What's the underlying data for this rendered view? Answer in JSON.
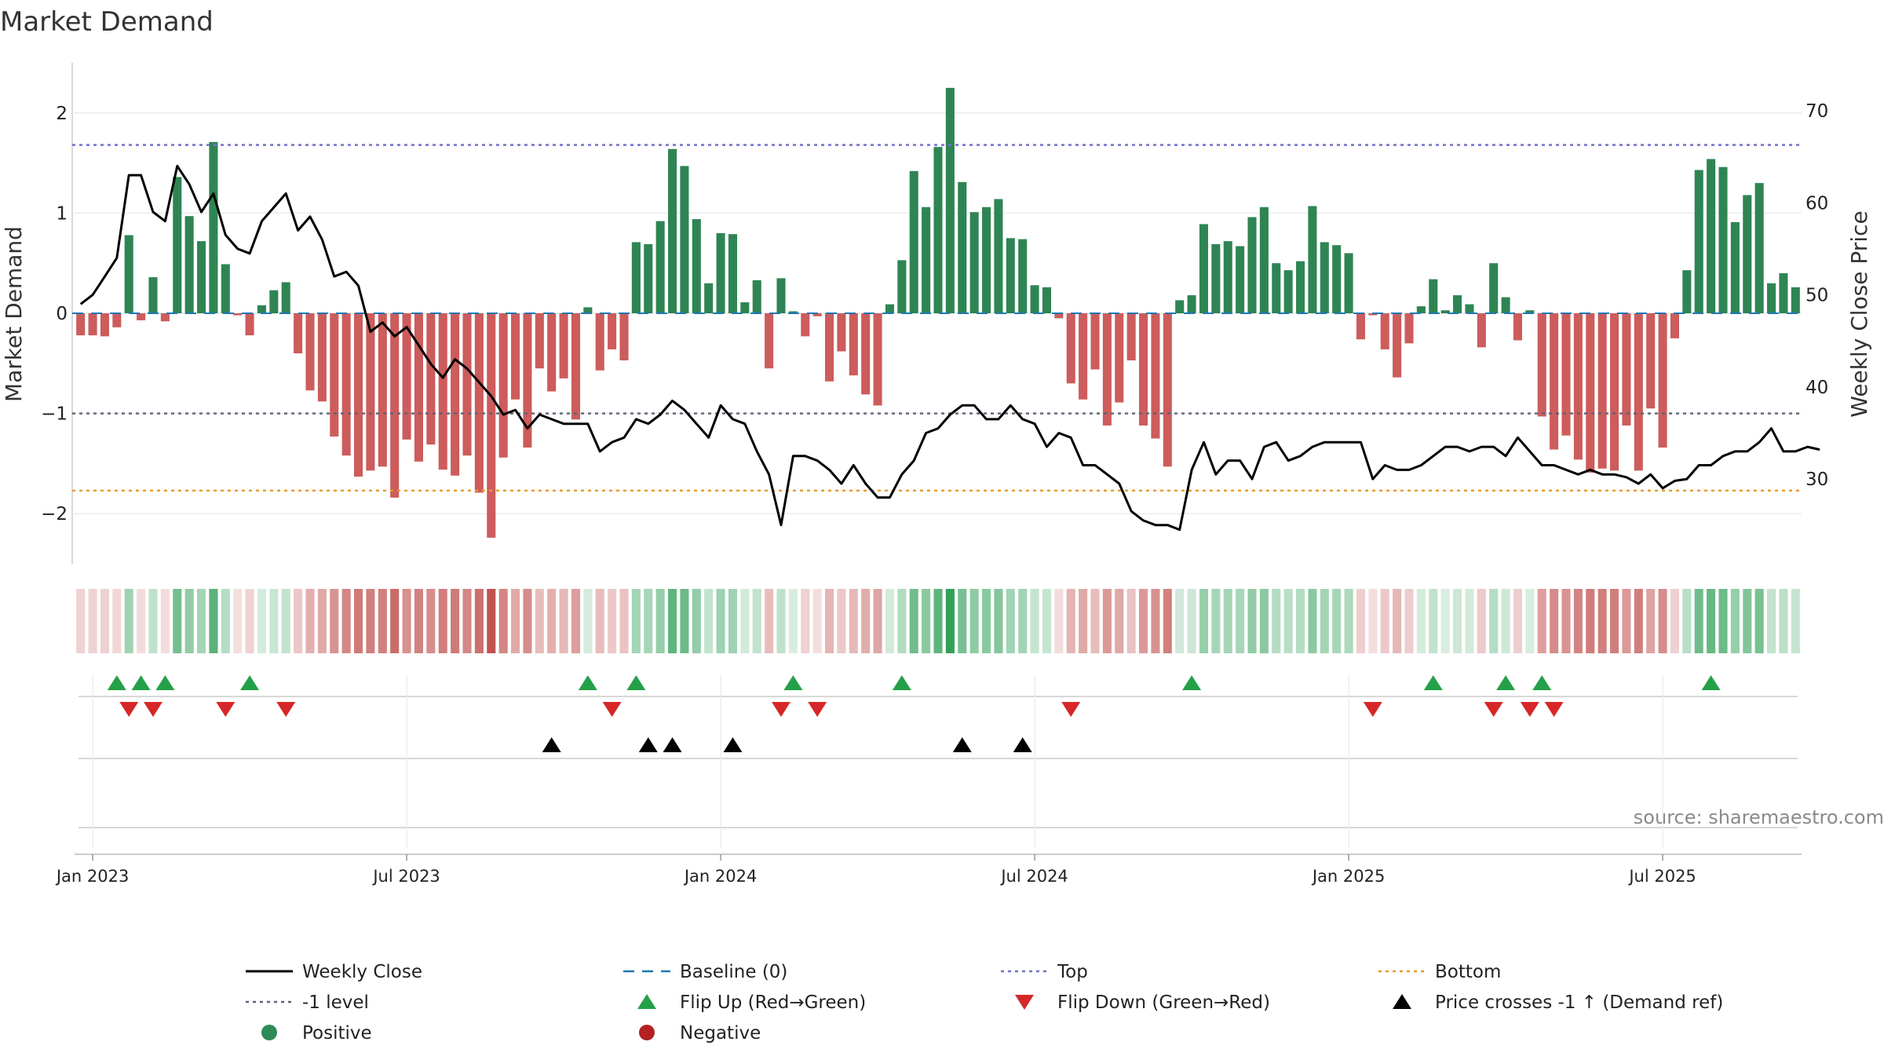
{
  "chart_data": {
    "type": "bar",
    "title": "Market Demand",
    "ylabel": "Market Demand",
    "y2label": "Weekly Close Price",
    "ylim": [
      -2.5,
      2.5
    ],
    "y2lim": [
      20.8,
      75.2
    ],
    "yticks": [
      2,
      1,
      0,
      -1,
      -2
    ],
    "ytick_labels": [
      "2",
      "1",
      "0",
      "−1",
      "−2"
    ],
    "y2ticks": [
      70,
      60,
      50,
      40,
      30
    ],
    "y2tick_labels": [
      "70",
      "60",
      "50",
      "40",
      "30"
    ],
    "top_level": 1.68,
    "minus1_level": -1.0,
    "bottom_level": -1.77,
    "x_ticks": [
      {
        "label": "Jan 2023",
        "week": 1
      },
      {
        "label": "Jul 2023",
        "week": 27
      },
      {
        "label": "Jan 2024",
        "week": 53
      },
      {
        "label": "Jul 2024",
        "week": 79
      },
      {
        "label": "Jan 2025",
        "week": 105
      },
      {
        "label": "Jul 2025",
        "week": 131
      }
    ],
    "demand": [
      -0.22,
      -0.22,
      -0.23,
      -0.14,
      0.78,
      -0.07,
      0.36,
      -0.08,
      1.36,
      0.97,
      0.72,
      1.71,
      0.49,
      -0.02,
      -0.22,
      0.08,
      0.23,
      0.31,
      -0.4,
      -0.77,
      -0.88,
      -1.23,
      -1.42,
      -1.63,
      -1.57,
      -1.53,
      -1.84,
      -1.26,
      -1.48,
      -1.31,
      -1.56,
      -1.62,
      -1.42,
      -1.79,
      -2.24,
      -1.44,
      -0.86,
      -1.34,
      -0.55,
      -0.78,
      -0.65,
      -1.06,
      0.06,
      -0.57,
      -0.36,
      -0.47,
      0.71,
      0.69,
      0.92,
      1.64,
      1.47,
      0.94,
      0.3,
      0.8,
      0.79,
      0.11,
      0.33,
      -0.55,
      0.35,
      0.02,
      -0.23,
      -0.03,
      -0.68,
      -0.38,
      -0.62,
      -0.81,
      -0.92,
      0.09,
      0.53,
      1.42,
      1.06,
      1.66,
      2.25,
      1.31,
      1.01,
      1.06,
      1.14,
      0.75,
      0.74,
      0.28,
      0.26,
      -0.05,
      -0.7,
      -0.86,
      -0.56,
      -1.12,
      -0.89,
      -0.47,
      -1.12,
      -1.25,
      -1.53,
      0.13,
      0.18,
      0.89,
      0.69,
      0.72,
      0.67,
      0.96,
      1.06,
      0.5,
      0.43,
      0.52,
      1.07,
      0.71,
      0.68,
      0.6,
      -0.26,
      -0.02,
      -0.36,
      -0.64,
      -0.3,
      0.07,
      0.34,
      0.03,
      0.18,
      0.09,
      -0.34,
      0.5,
      0.16,
      -0.27,
      0.03,
      -1.03,
      -1.36,
      -1.22,
      -1.46,
      -1.59,
      -1.55,
      -1.57,
      -1.12,
      -1.57,
      -0.95,
      -1.34,
      -0.25,
      0.43,
      1.43,
      1.54,
      1.46,
      0.91,
      1.18,
      1.3,
      0.3,
      0.4,
      0.26
    ],
    "close": [
      49.0,
      50.0,
      52.0,
      54.0,
      63.0,
      63.0,
      59.0,
      58.0,
      64.0,
      62.0,
      59.0,
      61.0,
      56.5,
      55.0,
      54.5,
      58.0,
      59.5,
      61.0,
      57.0,
      58.5,
      56.0,
      52.0,
      52.5,
      51.0,
      46.0,
      47.0,
      45.5,
      46.5,
      44.5,
      42.5,
      41.0,
      43.0,
      42.0,
      40.5,
      39.0,
      37.0,
      37.5,
      35.5,
      37.0,
      36.5,
      36.0,
      36.0,
      36.0,
      33.0,
      34.0,
      34.5,
      36.5,
      36.0,
      37.0,
      38.5,
      37.5,
      36.0,
      34.5,
      38.0,
      36.5,
      36.0,
      33.0,
      30.5,
      25.0,
      32.5,
      32.5,
      32.0,
      31.0,
      29.5,
      31.5,
      29.5,
      28.0,
      28.0,
      30.5,
      32.0,
      35.0,
      35.5,
      37.0,
      38.0,
      38.0,
      36.5,
      36.5,
      38.0,
      36.5,
      36.0,
      33.5,
      35.0,
      34.5,
      31.5,
      31.5,
      30.5,
      29.5,
      26.5,
      25.5,
      25.0,
      25.0,
      24.5,
      31.0,
      34.0,
      30.5,
      32.0,
      32.0,
      30.0,
      33.5,
      34.0,
      32.0,
      32.5,
      33.5,
      34.0,
      34.0,
      34.0,
      34.0,
      30.0,
      31.5,
      31.0,
      31.0,
      31.5,
      32.5,
      33.5,
      33.5,
      33.0,
      33.5,
      33.5,
      32.5,
      34.5,
      33.0,
      31.5,
      31.5,
      31.0,
      30.5,
      31.0,
      30.5,
      30.5,
      30.2,
      29.5,
      30.5,
      29.0,
      29.8,
      30.0,
      31.5,
      31.5,
      32.5,
      33.0,
      33.0,
      34.0,
      35.5,
      33.0,
      33.0,
      33.5,
      33.2
    ],
    "flip_up_weeks": [
      3,
      5,
      7,
      14,
      42,
      46,
      59,
      68,
      92,
      112,
      118,
      121,
      135
    ],
    "flip_down_weeks": [
      4,
      6,
      12,
      17,
      44,
      58,
      61,
      82,
      107,
      117,
      120,
      122
    ],
    "price_cross_weeks": [
      39,
      47,
      49,
      54,
      73,
      78
    ],
    "source": "source: sharemaestro.com",
    "legend": [
      {
        "label": "Weekly Close",
        "kind": "line",
        "color": "#000000"
      },
      {
        "label": "Baseline (0)",
        "kind": "dash",
        "color": "#1f77b4"
      },
      {
        "label": "Top",
        "kind": "dot",
        "color": "#7070cc"
      },
      {
        "label": "Bottom",
        "kind": "dot",
        "color": "#e69a2a"
      },
      {
        "label": "-1 level",
        "kind": "dot",
        "color": "#5a6475"
      },
      {
        "label": "Flip Up (Red→Green)",
        "kind": "tri-up",
        "color": "#24a148"
      },
      {
        "label": "Flip Down (Green→Red)",
        "kind": "tri-down",
        "color": "#d62728"
      },
      {
        "label": "Price crosses -1 ↑ (Demand ref)",
        "kind": "tri-up",
        "color": "#000000"
      },
      {
        "label": "Positive",
        "kind": "circle",
        "color": "#2e8b57"
      },
      {
        "label": "Negative",
        "kind": "circle",
        "color": "#b22222"
      }
    ],
    "colors": {
      "positive": "#2e8553",
      "negative": "#cd5c5c",
      "top": "#7070cc",
      "bottom": "#e69a2a",
      "minus1": "#5a6475",
      "baseline": "#1f77b4",
      "close": "#000000",
      "flip_up": "#24a148",
      "flip_down": "#d62728",
      "cross": "#000000"
    }
  }
}
